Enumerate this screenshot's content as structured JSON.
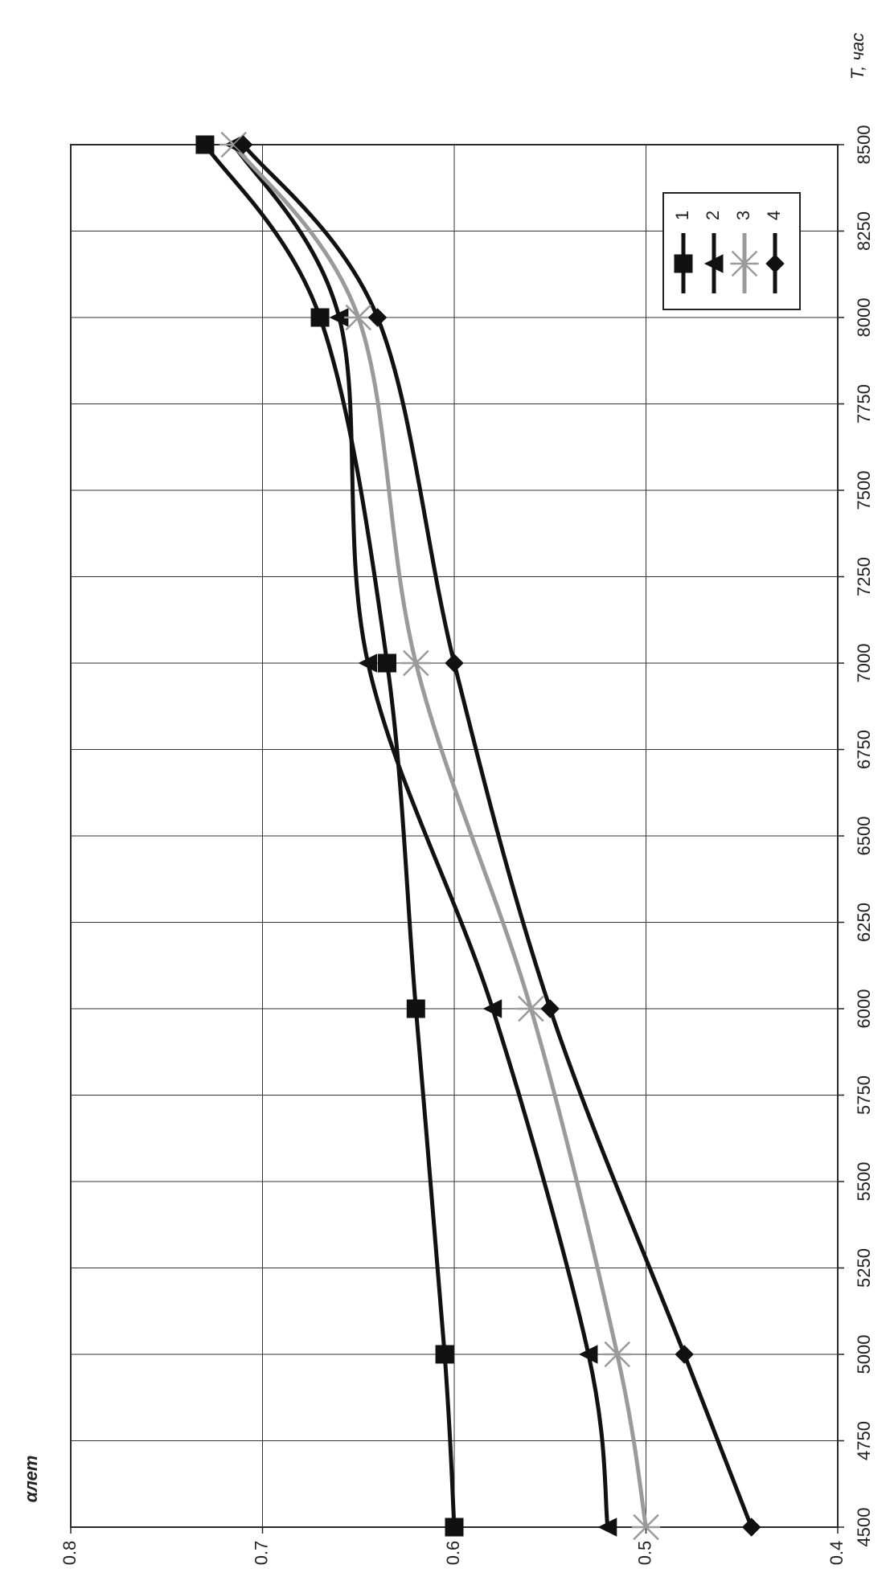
{
  "chart_data": {
    "type": "line",
    "x_label": "T, час",
    "y_label": "αлет",
    "x": [
      4500,
      5000,
      6000,
      7000,
      8000,
      8500
    ],
    "xlim": [
      4500,
      8500
    ],
    "xticks": [
      4500,
      4750,
      5000,
      5250,
      5500,
      5750,
      6000,
      6250,
      6500,
      6750,
      7000,
      7250,
      7500,
      7750,
      8000,
      8250,
      8500
    ],
    "ylim": [
      0.4,
      0.8
    ],
    "yticks": [
      0.4,
      0.5,
      0.6,
      0.7,
      0.8
    ],
    "grid": true,
    "legend": "upper right",
    "series": [
      {
        "name": "1",
        "color": "#111111",
        "marker": "square",
        "values": [
          0.6,
          0.605,
          0.62,
          0.635,
          0.67,
          0.73
        ]
      },
      {
        "name": "2",
        "color": "#111111",
        "marker": "triangle",
        "values": [
          0.52,
          0.53,
          0.58,
          0.645,
          0.66,
          0.715
        ]
      },
      {
        "name": "3",
        "color": "#9a9a9a",
        "marker": "star",
        "values": [
          0.5,
          0.515,
          0.56,
          0.62,
          0.65,
          0.715
        ]
      },
      {
        "name": "4",
        "color": "#111111",
        "marker": "diamond",
        "values": [
          0.445,
          0.48,
          0.55,
          0.6,
          0.64,
          0.71
        ]
      }
    ]
  }
}
